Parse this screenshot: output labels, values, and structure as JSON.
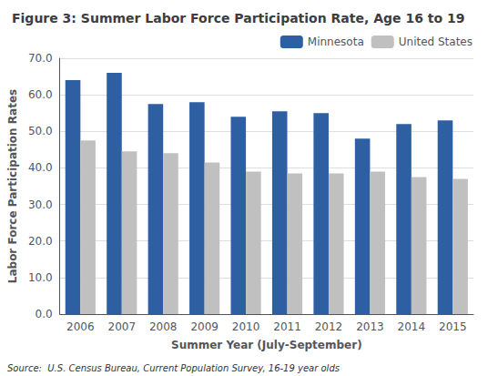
{
  "chart_data": {
    "type": "bar",
    "title": "Figure 3: Summer Labor Force Participation Rate, Age 16 to 19",
    "x_label": "Summer Year (July-September)",
    "y_label": "Labor Force Participation Rates",
    "annotations": [
      "Source:  U.S. Census Bureau, Current Population Survey, 16-19 year olds"
    ],
    "categories": [
      "2006",
      "2007",
      "2008",
      "2009",
      "2010",
      "2011",
      "2012",
      "2013",
      "2014",
      "2015"
    ],
    "series": [
      {
        "name": "Minnesota",
        "color": "#2E5FA3",
        "values": [
          64.0,
          66.0,
          57.5,
          58.0,
          54.0,
          55.5,
          55.0,
          48.0,
          52.0,
          53.0
        ]
      },
      {
        "name": "United States",
        "color": "#C0C0C0",
        "values": [
          47.5,
          44.5,
          44.0,
          41.5,
          39.0,
          38.5,
          38.5,
          39.0,
          37.5,
          37.0
        ]
      }
    ],
    "ylim": [
      0,
      70
    ],
    "yticks": [
      {
        "value": 0,
        "label": "0.0"
      },
      {
        "value": 10,
        "label": "10.0"
      },
      {
        "value": 20,
        "label": "20.0"
      },
      {
        "value": 30,
        "label": "30.0"
      },
      {
        "value": 40,
        "label": "40.0"
      },
      {
        "value": 50,
        "label": "50.0"
      },
      {
        "value": 60,
        "label": "60.0"
      },
      {
        "value": 70,
        "label": "70.0"
      }
    ],
    "grid": true,
    "legend": "upper right"
  }
}
